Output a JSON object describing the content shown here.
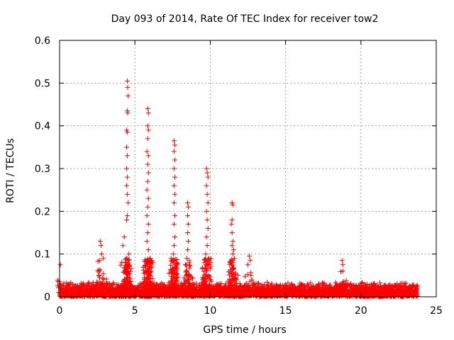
{
  "chart_data": {
    "type": "scatter",
    "title": "Day 093 of 2014, Rate Of TEC Index for receiver tow2",
    "xlabel": "GPS time / hours",
    "ylabel": "ROTI / TECUs",
    "xlim": [
      0,
      25
    ],
    "ylim": [
      0,
      0.6
    ],
    "xticks": [
      0,
      5,
      10,
      15,
      20,
      25
    ],
    "xtick_labels": [
      "0",
      "5",
      "10",
      "15",
      "20",
      "25"
    ],
    "yticks": [
      0,
      0.1,
      0.2,
      0.3,
      0.4,
      0.5,
      0.6
    ],
    "ytick_labels": [
      "0",
      "0.1",
      "0.2",
      "0.3",
      "0.4",
      "0.5",
      "0.6"
    ],
    "grid": true,
    "marker": "+",
    "color": "#ff0000",
    "data_coverage_hours": [
      0,
      23.75
    ],
    "baseline": {
      "typical_max": 0.035,
      "typical_min": 0.0
    },
    "notable_values": {
      "initial_spike": [
        [
          0.05,
          0.075
        ]
      ],
      "cluster_2_7h": [
        [
          2.7,
          0.13
        ],
        [
          2.75,
          0.12
        ],
        [
          2.8,
          0.1
        ],
        [
          2.9,
          0.09
        ],
        [
          2.65,
          0.085
        ]
      ],
      "cluster_4_5h": [
        [
          4.5,
          0.505
        ],
        [
          4.52,
          0.49
        ],
        [
          4.55,
          0.47
        ],
        [
          4.5,
          0.435
        ],
        [
          4.52,
          0.43
        ],
        [
          4.45,
          0.39
        ],
        [
          4.5,
          0.385
        ],
        [
          4.45,
          0.35
        ],
        [
          4.5,
          0.33
        ],
        [
          4.45,
          0.3
        ],
        [
          4.5,
          0.28
        ],
        [
          4.45,
          0.26
        ],
        [
          4.5,
          0.24
        ],
        [
          4.55,
          0.22
        ],
        [
          4.5,
          0.19
        ],
        [
          4.45,
          0.18
        ],
        [
          4.3,
          0.14
        ],
        [
          4.2,
          0.12
        ],
        [
          4.6,
          0.1
        ]
      ],
      "cluster_5_8h": [
        [
          5.85,
          0.44
        ],
        [
          5.9,
          0.43
        ],
        [
          5.85,
          0.4
        ],
        [
          5.9,
          0.39
        ],
        [
          5.85,
          0.37
        ],
        [
          5.8,
          0.34
        ],
        [
          5.9,
          0.33
        ],
        [
          5.85,
          0.31
        ],
        [
          5.9,
          0.29
        ],
        [
          5.85,
          0.27
        ],
        [
          5.8,
          0.25
        ],
        [
          5.9,
          0.23
        ],
        [
          5.85,
          0.21
        ],
        [
          5.8,
          0.19
        ],
        [
          5.9,
          0.17
        ],
        [
          5.85,
          0.15
        ],
        [
          5.8,
          0.13
        ],
        [
          5.9,
          0.11
        ],
        [
          6.0,
          0.09
        ],
        [
          6.2,
          0.08
        ]
      ],
      "cluster_7_6h": [
        [
          7.6,
          0.365
        ],
        [
          7.65,
          0.355
        ],
        [
          7.6,
          0.34
        ],
        [
          7.65,
          0.32
        ],
        [
          7.6,
          0.3
        ],
        [
          7.65,
          0.28
        ],
        [
          7.6,
          0.26
        ],
        [
          7.65,
          0.24
        ],
        [
          7.6,
          0.22
        ],
        [
          7.65,
          0.19
        ],
        [
          7.6,
          0.17
        ],
        [
          7.65,
          0.14
        ],
        [
          7.6,
          0.12
        ],
        [
          7.55,
          0.1
        ],
        [
          7.4,
          0.09
        ]
      ],
      "cluster_8_5h": [
        [
          8.5,
          0.22
        ],
        [
          8.55,
          0.21
        ],
        [
          8.5,
          0.19
        ],
        [
          8.55,
          0.17
        ],
        [
          8.5,
          0.15
        ],
        [
          8.55,
          0.13
        ],
        [
          8.5,
          0.11
        ],
        [
          8.45,
          0.09
        ],
        [
          8.6,
          0.08
        ]
      ],
      "cluster_9_8h": [
        [
          9.75,
          0.3
        ],
        [
          9.8,
          0.29
        ],
        [
          9.85,
          0.28
        ],
        [
          9.75,
          0.26
        ],
        [
          9.8,
          0.24
        ],
        [
          9.85,
          0.22
        ],
        [
          9.75,
          0.2
        ],
        [
          9.8,
          0.18
        ],
        [
          9.85,
          0.16
        ],
        [
          9.75,
          0.14
        ],
        [
          9.8,
          0.12
        ],
        [
          9.7,
          0.1
        ],
        [
          9.9,
          0.09
        ],
        [
          9.6,
          0.08
        ]
      ],
      "cluster_11_5h": [
        [
          11.45,
          0.22
        ],
        [
          11.5,
          0.215
        ],
        [
          11.45,
          0.18
        ],
        [
          11.4,
          0.17
        ],
        [
          11.45,
          0.15
        ],
        [
          11.5,
          0.13
        ],
        [
          11.45,
          0.12
        ],
        [
          11.55,
          0.11
        ],
        [
          11.5,
          0.1
        ],
        [
          11.6,
          0.09
        ],
        [
          11.4,
          0.08
        ]
      ],
      "cluster_12_6h": [
        [
          12.6,
          0.095
        ],
        [
          12.65,
          0.085
        ],
        [
          12.5,
          0.075
        ]
      ],
      "late_spike_18_8h": [
        [
          18.75,
          0.085
        ],
        [
          18.8,
          0.075
        ],
        [
          18.8,
          0.06
        ]
      ]
    }
  }
}
